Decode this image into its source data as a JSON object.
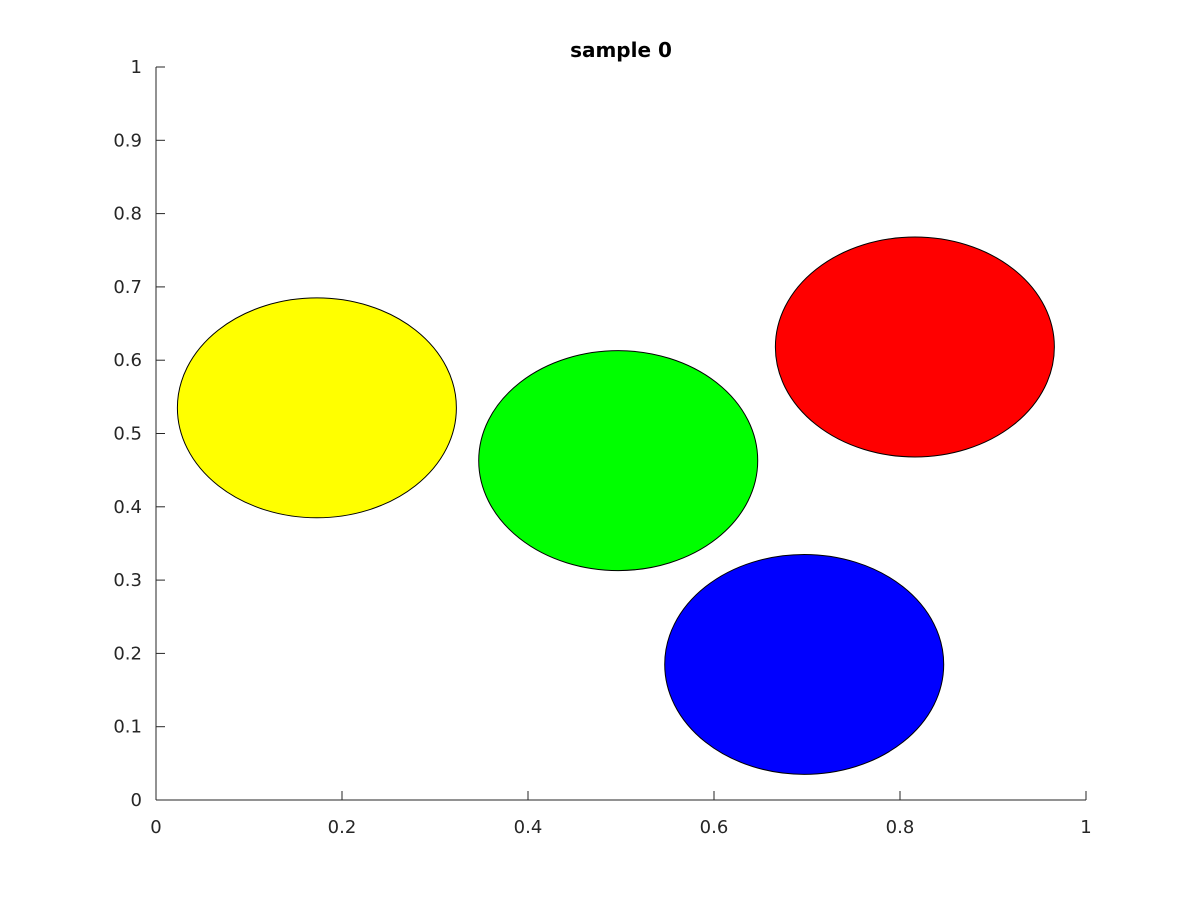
{
  "chart_data": {
    "type": "scatter",
    "title": "sample  0",
    "xlabel": "",
    "ylabel": "",
    "xlim": [
      0,
      1
    ],
    "ylim": [
      0,
      1
    ],
    "grid": false,
    "legend": "none",
    "x_ticks": [
      "0",
      "0.2",
      "0.4",
      "0.6",
      "0.8",
      "1"
    ],
    "x_tick_values": [
      0,
      0.2,
      0.4,
      0.6,
      0.8,
      1
    ],
    "y_ticks": [
      "0",
      "0.1",
      "0.2",
      "0.3",
      "0.4",
      "0.5",
      "0.6",
      "0.7",
      "0.8",
      "0.9",
      "1"
    ],
    "y_tick_values": [
      0,
      0.1,
      0.2,
      0.3,
      0.4,
      0.5,
      0.6,
      0.7,
      0.8,
      0.9,
      1
    ],
    "ellipses": [
      {
        "color": "#ffff00",
        "cx": 0.173,
        "cy": 0.535,
        "rx": 0.15,
        "ry": 0.15
      },
      {
        "color": "#00ff00",
        "cx": 0.497,
        "cy": 0.463,
        "rx": 0.15,
        "ry": 0.15
      },
      {
        "color": "#ff0000",
        "cx": 0.816,
        "cy": 0.618,
        "rx": 0.15,
        "ry": 0.15
      },
      {
        "color": "#0000ff",
        "cx": 0.697,
        "cy": 0.185,
        "rx": 0.15,
        "ry": 0.15
      }
    ]
  }
}
